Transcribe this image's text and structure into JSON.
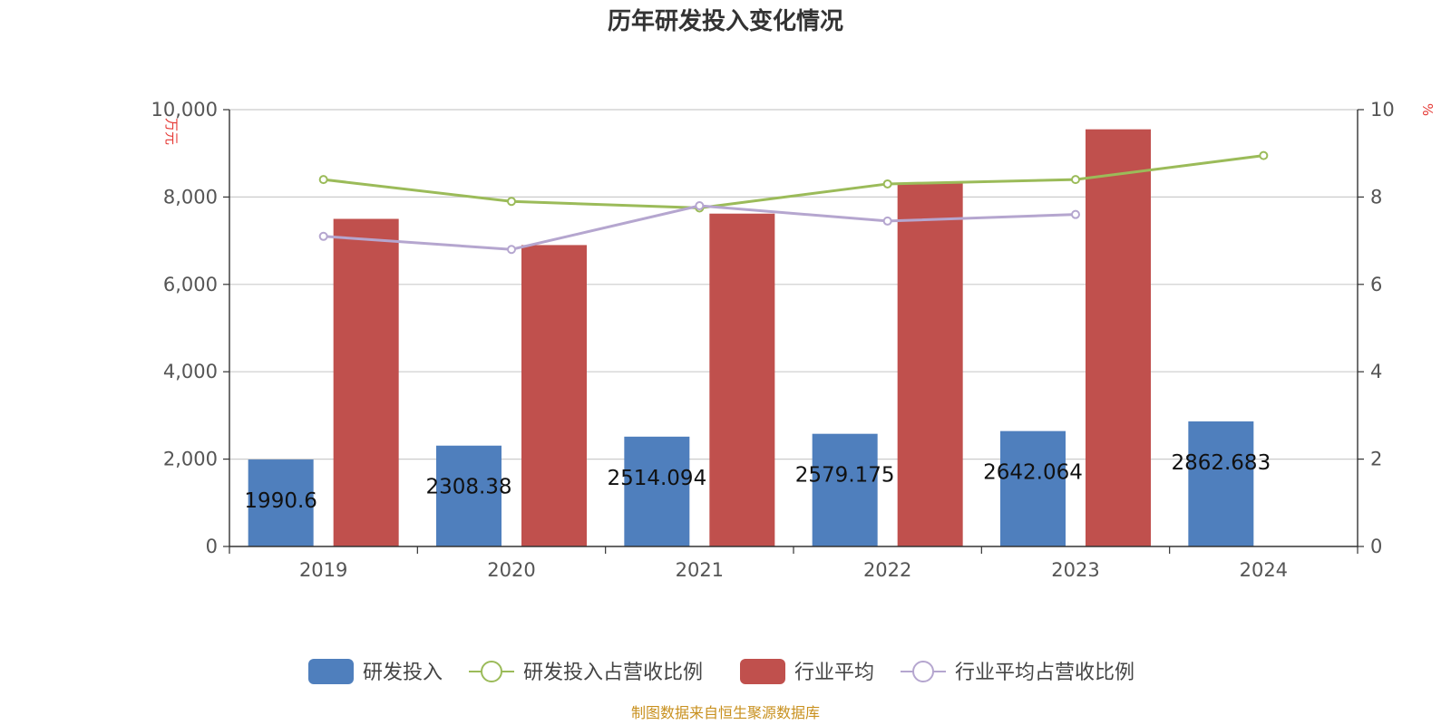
{
  "chart_data": {
    "title": "历年研发投入变化情况",
    "categories": [
      "2019",
      "2020",
      "2021",
      "2022",
      "2023",
      "2024"
    ],
    "y_left": {
      "unit": "万元",
      "min": 0,
      "max": 10000,
      "ticks": [
        0,
        2000,
        4000,
        6000,
        8000,
        10000
      ],
      "tick_labels": [
        "0",
        "2,000",
        "4,000",
        "6,000",
        "8,000",
        "10,000"
      ]
    },
    "y_right": {
      "unit": "%",
      "min": 0,
      "max": 10,
      "ticks": [
        0,
        2,
        4,
        6,
        8,
        10
      ],
      "tick_labels": [
        "0",
        "2",
        "4",
        "6",
        "8",
        "10"
      ]
    },
    "series": [
      {
        "name": "研发投入",
        "type": "bar",
        "axis": "left",
        "color": "#4f7fbd",
        "values": [
          1990.6,
          2308.38,
          2514.094,
          2579.175,
          2642.064,
          2862.683
        ],
        "labels": [
          "1990.6",
          "2308.38",
          "2514.094",
          "2579.175",
          "2642.064",
          "2862.683"
        ]
      },
      {
        "name": "研发投入占营收比例",
        "type": "line",
        "axis": "right",
        "color": "#9bbb59",
        "values": [
          8.4,
          7.9,
          7.75,
          8.3,
          8.4,
          8.95
        ]
      },
      {
        "name": "行业平均",
        "type": "bar",
        "axis": "left",
        "color": "#c0504d",
        "values": [
          7500,
          6900,
          7620,
          8320,
          9550,
          null
        ]
      },
      {
        "name": "行业平均占营收比例",
        "type": "line",
        "axis": "right",
        "color": "#b5a6cf",
        "values": [
          7.1,
          6.8,
          7.8,
          7.45,
          7.6,
          null
        ]
      }
    ],
    "grid": true,
    "legend": "bottom-center"
  },
  "footer": {
    "source": "制图数据来自恒生聚源数据库"
  }
}
